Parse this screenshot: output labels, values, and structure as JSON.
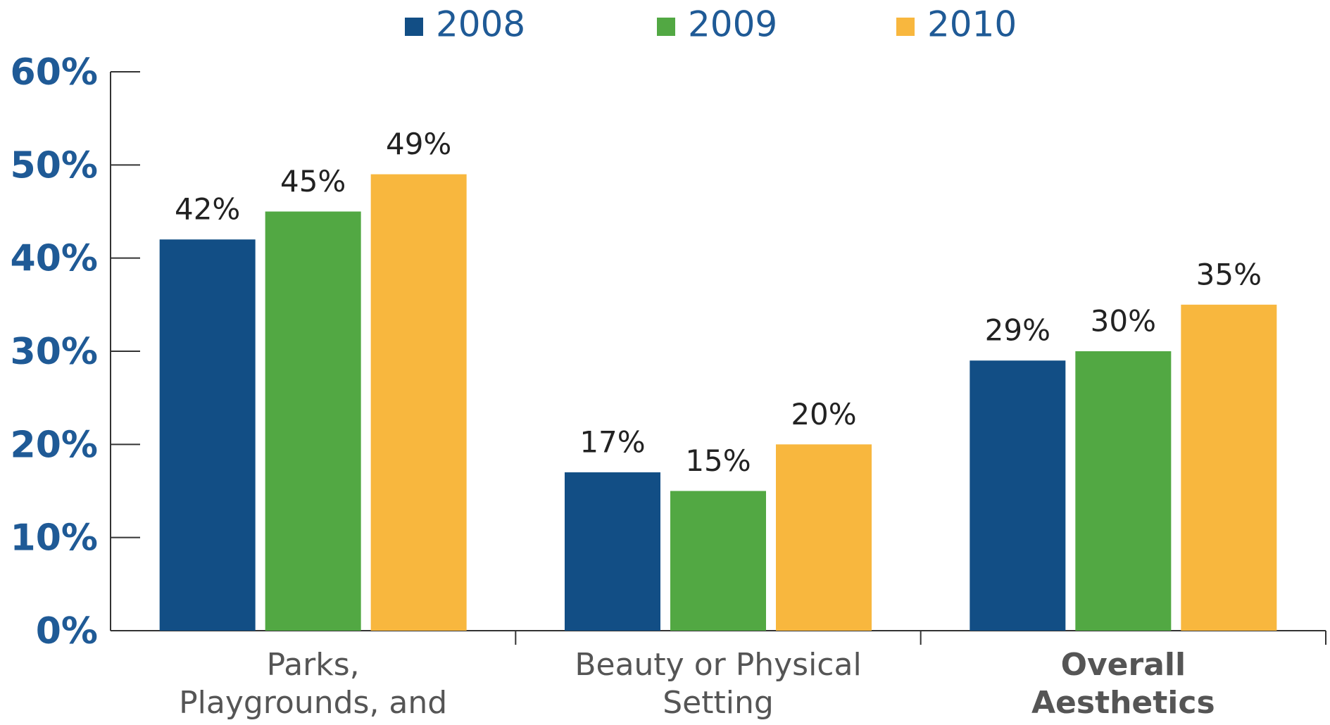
{
  "chart_data": {
    "type": "bar",
    "categories": [
      "Parks, Playgrounds, and Trails",
      "Beauty or Physical Setting",
      "Overall Aesthetics"
    ],
    "bold_categories": [
      false,
      false,
      true
    ],
    "series": [
      {
        "name": "2008",
        "color": "#124e85",
        "values": [
          42,
          17,
          29
        ],
        "value_labels": [
          "42%",
          "17%",
          "29%"
        ]
      },
      {
        "name": "2009",
        "color": "#52a843",
        "values": [
          45,
          15,
          30
        ],
        "value_labels": [
          "45%",
          "15%",
          "30%"
        ]
      },
      {
        "name": "2010",
        "color": "#f8b73e",
        "values": [
          49,
          20,
          35
        ],
        "value_labels": [
          "49%",
          "20%",
          "35%"
        ]
      }
    ],
    "ylim": [
      0,
      60
    ],
    "yticks": [
      {
        "value": 0,
        "label": "0%"
      },
      {
        "value": 10,
        "label": "10%"
      },
      {
        "value": 20,
        "label": "20%"
      },
      {
        "value": 30,
        "label": "30%"
      },
      {
        "value": 40,
        "label": "40%"
      },
      {
        "value": 50,
        "label": "50%"
      },
      {
        "value": 60,
        "label": "60%"
      }
    ],
    "legend": "top"
  }
}
